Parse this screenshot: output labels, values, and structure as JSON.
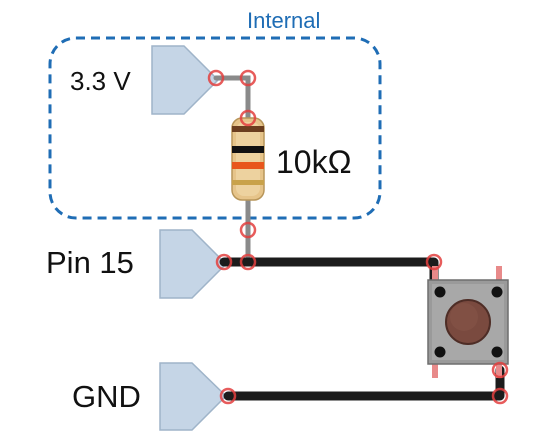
{
  "labels": {
    "internal": "Internal",
    "supply": "3.3 V",
    "resistor": "10kΩ",
    "pin": "Pin 15",
    "ground": "GND"
  },
  "colors": {
    "internal_box": "#1f6db5",
    "port_fill": "#c5d5e6",
    "port_stroke": "#9fb4c9",
    "wire_black": "#1c1c1c",
    "wire_gray": "#8a8a8a",
    "joint_red": "#e3403f",
    "resistor_body": "#e6c48a",
    "button_body": "#9a9a9a",
    "button_cap": "#7a4a3f"
  },
  "resistor_bands": [
    "#6b3e1f",
    "#111111",
    "#e8561c",
    "#c9a24a"
  ],
  "icons": {
    "port_marker": "pentagon-port-icon",
    "resistor": "resistor-icon",
    "push_button": "tactile-switch-icon"
  }
}
